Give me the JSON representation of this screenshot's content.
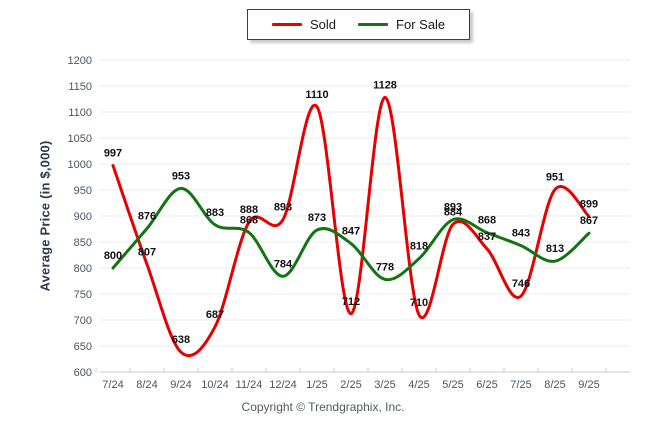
{
  "chart_data": {
    "type": "line",
    "categories": [
      "7/24",
      "8/24",
      "9/24",
      "10/24",
      "11/24",
      "12/24",
      "1/25",
      "2/25",
      "3/25",
      "4/25",
      "5/25",
      "6/25",
      "7/25",
      "8/25",
      "9/25"
    ],
    "series": [
      {
        "name": "Sold",
        "color": "#e60000",
        "values": [
          997,
          807,
          638,
          687,
          888,
          893,
          1110,
          712,
          1128,
          710,
          884,
          837,
          746,
          951,
          899
        ]
      },
      {
        "name": "For Sale",
        "color": "#127412",
        "values": [
          800,
          876,
          953,
          883,
          868,
          784,
          873,
          847,
          778,
          818,
          893,
          868,
          843,
          813,
          867
        ]
      }
    ],
    "title": "",
    "xlabel": "",
    "ylabel": "Average Price (in $,000)",
    "ylim": [
      600,
      1200
    ],
    "ytick_step": 50,
    "grid": "horizontal",
    "legend_position": "top-center",
    "smooth": true,
    "point_labels": true
  },
  "footer": {
    "copyright": "Copyright © Trendgraphix, Inc."
  },
  "colors": {
    "gridline": "#ebebeb",
    "axis_line": "#c9c9c9",
    "tick_mark": "#c9c9c9",
    "tick_label": "#4a5560",
    "data_label": "#111111",
    "legend_border": "#24406b"
  }
}
